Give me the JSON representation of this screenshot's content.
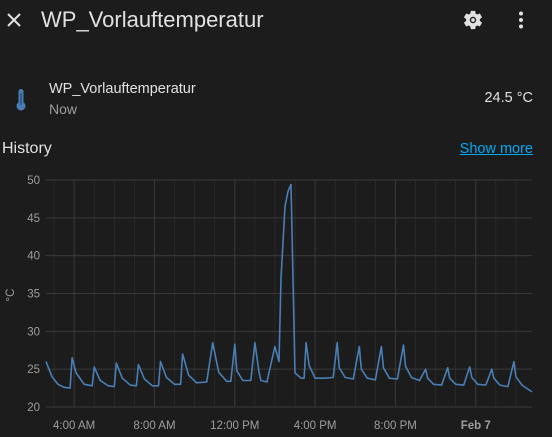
{
  "header": {
    "title": "WP_Vorlauftemperatur",
    "icons": {
      "close": "close-icon",
      "settings": "gear-icon",
      "menu": "dots-vertical-icon"
    }
  },
  "entity": {
    "name": "WP_Vorlauftemperatur",
    "last_changed": "Now",
    "state": "24.5 °C",
    "icon": "thermometer-icon"
  },
  "history": {
    "label": "History",
    "show_more": "Show more"
  },
  "colors": {
    "background": "#1c1c1c",
    "series": "#4a7fb5",
    "link": "#03a9f4",
    "grid": "#3a3a3a"
  },
  "chart_data": {
    "type": "line",
    "ylabel": "°C",
    "ylim": [
      20,
      50
    ],
    "y_ticks": [
      20,
      25,
      30,
      35,
      40,
      45,
      50
    ],
    "x_tick_labels": [
      "4:00 AM",
      "8:00 AM",
      "12:00 PM",
      "4:00 PM",
      "8:00 PM",
      "Feb 7"
    ],
    "x_tick_hours": [
      4,
      8,
      12,
      16,
      20,
      24
    ],
    "x_range_hours": [
      2.6,
      26.8
    ],
    "grid": true,
    "series": [
      {
        "x": [
          2.6,
          2.75,
          2.9,
          3.2,
          3.5,
          3.8,
          3.9,
          4.1,
          4.5,
          4.9,
          5.0,
          5.3,
          5.7,
          6.0,
          6.1,
          6.4,
          6.8,
          7.1,
          7.2,
          7.5,
          7.9,
          8.2,
          8.3,
          8.6,
          9.0,
          9.3,
          9.4,
          9.7,
          10.1,
          10.6,
          10.9,
          11.2,
          11.6,
          11.8,
          12.0,
          12.1,
          12.4,
          12.8,
          13.0,
          13.2,
          13.3,
          13.6,
          14.0,
          14.2,
          14.3,
          14.5,
          14.65,
          14.8,
          15.0,
          15.3,
          15.45,
          15.55,
          15.7,
          16.0,
          16.5,
          16.9,
          17.1,
          17.2,
          17.5,
          17.9,
          18.2,
          18.3,
          18.6,
          19.0,
          19.3,
          19.4,
          19.7,
          20.1,
          20.4,
          20.5,
          20.8,
          21.2,
          21.5,
          21.6,
          21.9,
          22.3,
          22.6,
          22.7,
          23.0,
          23.4,
          23.7,
          23.8,
          24.1,
          24.5,
          24.8,
          24.9,
          25.2,
          25.6,
          25.9,
          26.0,
          26.3,
          26.8
        ],
        "y": [
          26.0,
          25.0,
          24.0,
          23.0,
          22.6,
          22.5,
          26.5,
          24.5,
          23.0,
          22.8,
          25.3,
          23.5,
          22.8,
          22.7,
          25.8,
          23.8,
          22.9,
          22.8,
          25.6,
          23.7,
          22.8,
          22.8,
          26.0,
          23.9,
          23.0,
          23.0,
          27.0,
          24.2,
          23.2,
          23.3,
          28.5,
          24.6,
          23.4,
          23.4,
          28.3,
          24.8,
          23.5,
          23.5,
          28.5,
          24.7,
          23.5,
          23.3,
          28.0,
          26.0,
          37.0,
          46.5,
          48.5,
          49.4,
          24.5,
          23.8,
          23.8,
          28.5,
          25.5,
          23.8,
          23.8,
          23.9,
          28.5,
          25.2,
          23.9,
          23.7,
          28.0,
          25.0,
          23.8,
          23.6,
          28.0,
          25.2,
          23.8,
          23.7,
          28.2,
          25.4,
          23.9,
          23.5,
          25.0,
          23.8,
          23.0,
          22.9,
          25.2,
          23.8,
          23.0,
          22.9,
          25.3,
          23.9,
          23.0,
          22.9,
          25.0,
          23.8,
          22.9,
          22.7,
          26.0,
          24.0,
          22.9,
          22.0
        ]
      }
    ]
  }
}
